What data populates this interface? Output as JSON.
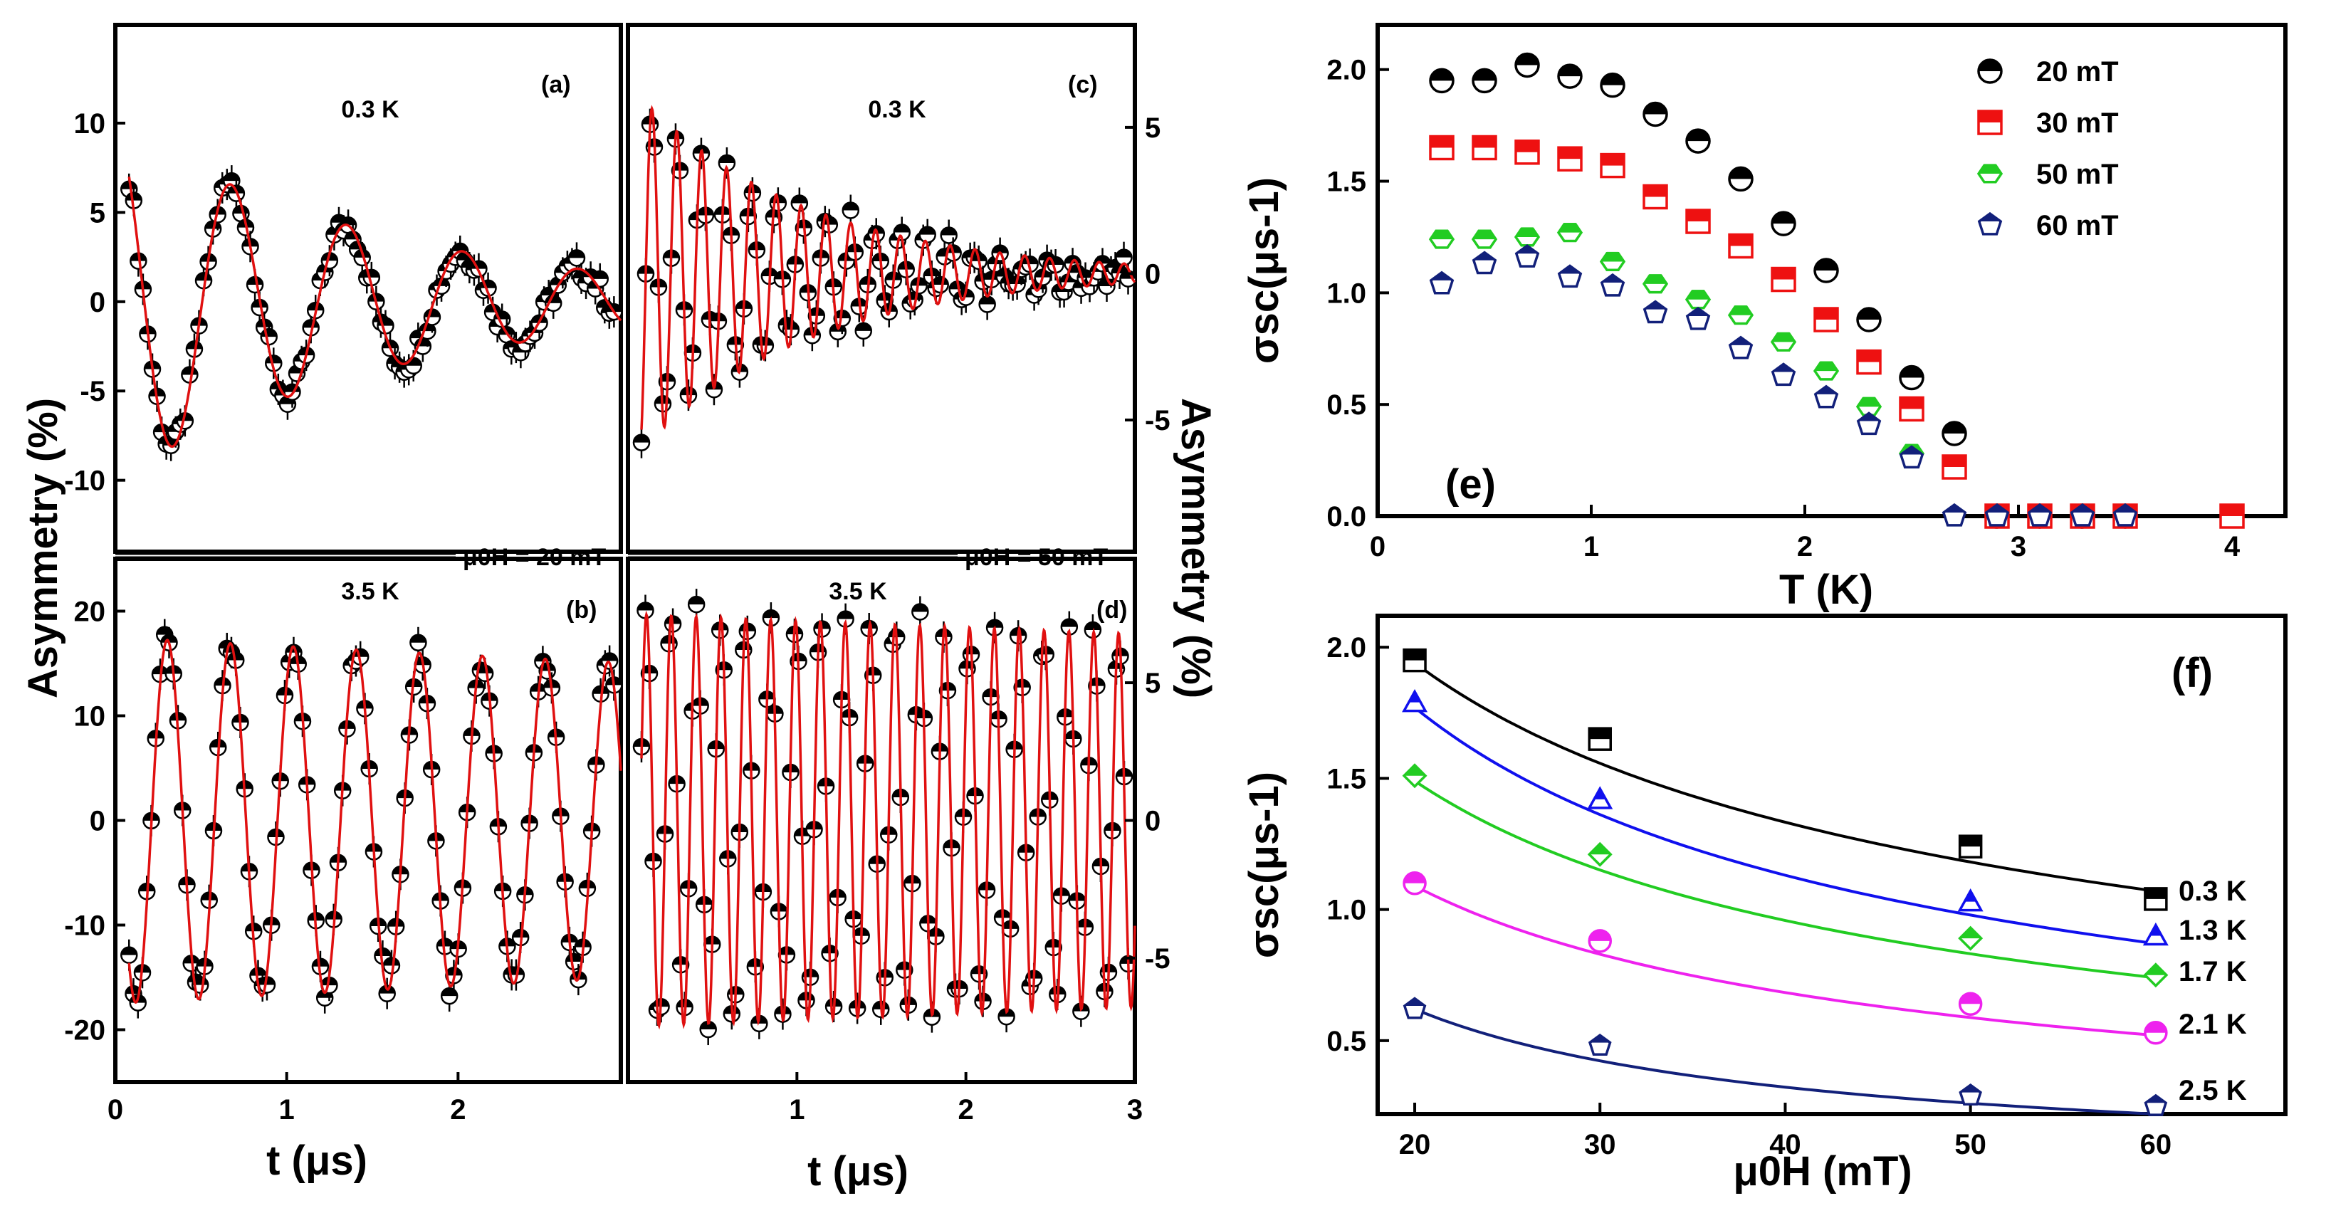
{
  "chart_data": [
    {
      "panel": "(a)",
      "type": "scatter",
      "label": "(a)",
      "temperature": "0.3 K",
      "xlim": [
        0,
        2.95
      ],
      "ylim": [
        -14,
        15.5
      ],
      "yticks": [
        -10,
        -5,
        0,
        5,
        10
      ],
      "fit": {
        "A": 10,
        "tau": 1.6,
        "f": 1.48,
        "phi": 0,
        "relax": 0.6
      }
    },
    {
      "panel": "(b)",
      "type": "scatter",
      "label": "(b)",
      "temperature": "3.5 K",
      "field_label": "μ0H = 20 mT",
      "xlim": [
        0,
        2.95
      ],
      "ylim": [
        -25,
        25
      ],
      "xticks": [
        0,
        1,
        2
      ],
      "yticks": [
        -20,
        -10,
        0,
        10,
        20
      ],
      "fit": {
        "A": 17.5,
        "tau": 20,
        "f": 2.72,
        "phi": 1.1,
        "relax": 0.02
      }
    },
    {
      "panel": "(c)",
      "type": "scatter",
      "label": "(c)",
      "temperature": "0.3 K",
      "xlim": [
        0,
        3
      ],
      "ylim": [
        -9.5,
        8.5
      ],
      "yticks": [
        -5,
        0,
        5
      ],
      "fit": {
        "A": 6.5,
        "tau": 1.0,
        "f": 6.8,
        "phi": 0.2,
        "relax": 0.5
      }
    },
    {
      "panel": "(d)",
      "type": "scatter",
      "label": "(d)",
      "temperature": "3.5 K",
      "field_label": "μ0H = 50 mT",
      "xlim": [
        0,
        3
      ],
      "ylim": [
        -9.5,
        9.5
      ],
      "xticks": [
        1,
        2,
        3
      ],
      "yticks": [
        -5,
        0,
        5
      ],
      "fit": {
        "A": 7.5,
        "tau": 30,
        "f": 6.8,
        "phi": 1.6,
        "relax": 0.02
      }
    },
    {
      "panel": "(e)",
      "type": "scatter",
      "label": "(e)",
      "xlabel": "T (K)",
      "ylabel": "σsc(μs-1)",
      "xlim": [
        0,
        4.25
      ],
      "ylim": [
        0,
        2.2
      ],
      "xticks": [
        0,
        1,
        2,
        3,
        4
      ],
      "yticks": [
        0.0,
        0.5,
        1.0,
        1.5,
        2.0
      ],
      "series": [
        {
          "name": "20 mT",
          "color": "#000000",
          "marker": "circle",
          "x": [
            0.3,
            0.5,
            0.7,
            0.9,
            1.1,
            1.3,
            1.5,
            1.7,
            1.9,
            2.1,
            2.3,
            2.5,
            2.7,
            2.9,
            3.1,
            3.3,
            3.5
          ],
          "y": [
            1.95,
            1.95,
            2.02,
            1.97,
            1.93,
            1.8,
            1.68,
            1.51,
            1.31,
            1.1,
            0.88,
            0.62,
            0.37,
            0,
            0,
            0,
            0
          ]
        },
        {
          "name": "30 mT",
          "color": "#ee1111",
          "marker": "square",
          "x": [
            0.3,
            0.5,
            0.7,
            0.9,
            1.1,
            1.3,
            1.5,
            1.7,
            1.9,
            2.1,
            2.3,
            2.5,
            2.7,
            2.9,
            3.1,
            3.3,
            3.5,
            4.0
          ],
          "y": [
            1.65,
            1.65,
            1.63,
            1.6,
            1.57,
            1.43,
            1.32,
            1.21,
            1.06,
            0.88,
            0.69,
            0.48,
            0.22,
            0,
            0,
            0,
            0,
            0
          ]
        },
        {
          "name": "50 mT",
          "color": "#22cc22",
          "marker": "hexagon",
          "x": [
            0.3,
            0.5,
            0.7,
            0.9,
            1.1,
            1.3,
            1.5,
            1.7,
            1.9,
            2.1,
            2.3,
            2.5
          ],
          "y": [
            1.24,
            1.24,
            1.25,
            1.27,
            1.14,
            1.04,
            0.97,
            0.9,
            0.78,
            0.65,
            0.49,
            0.28
          ]
        },
        {
          "name": "60 mT",
          "color": "#12207a",
          "marker": "pentagon",
          "x": [
            0.3,
            0.5,
            0.7,
            0.9,
            1.1,
            1.3,
            1.5,
            1.7,
            1.9,
            2.1,
            2.3,
            2.5,
            2.7,
            2.9,
            3.1,
            3.3,
            3.5
          ],
          "y": [
            1.04,
            1.13,
            1.16,
            1.07,
            1.03,
            0.91,
            0.88,
            0.75,
            0.63,
            0.53,
            0.41,
            0.26,
            0,
            0,
            0,
            0,
            0
          ]
        }
      ]
    },
    {
      "panel": "(f)",
      "type": "scatter",
      "label": "(f)",
      "xlabel": "μ0H (mT)",
      "ylabel": "σsc(μs-1)",
      "xlim": [
        18,
        67
      ],
      "ylim": [
        0.22,
        2.12
      ],
      "xticks": [
        20,
        30,
        40,
        50,
        60
      ],
      "yticks": [
        0.5,
        1.0,
        1.5,
        2.0
      ],
      "series": [
        {
          "name": "0.3 K",
          "color": "#000000",
          "marker": "square",
          "x": [
            20,
            30,
            50,
            60
          ],
          "y": [
            1.95,
            1.65,
            1.24,
            1.04
          ],
          "fit": [
            1.94,
            1.07
          ]
        },
        {
          "name": "1.3 K",
          "color": "#1010ee",
          "marker": "triangle",
          "x": [
            20,
            30,
            50,
            60
          ],
          "y": [
            1.79,
            1.42,
            1.03,
            0.9
          ],
          "fit": [
            1.77,
            0.87
          ]
        },
        {
          "name": "1.7 K",
          "color": "#22cc22",
          "marker": "diamond",
          "x": [
            20,
            30,
            50,
            60
          ],
          "y": [
            1.51,
            1.21,
            0.89,
            0.75
          ],
          "fit": [
            1.49,
            0.74
          ]
        },
        {
          "name": "2.1 K",
          "color": "#ee22ee",
          "marker": "circle",
          "x": [
            20,
            30,
            50,
            60
          ],
          "y": [
            1.1,
            0.88,
            0.64,
            0.53
          ],
          "fit": [
            1.09,
            0.52
          ]
        },
        {
          "name": "2.5 K",
          "color": "#12207a",
          "marker": "pentagon",
          "x": [
            20,
            30,
            50,
            60
          ],
          "y": [
            0.62,
            0.48,
            0.29,
            0.25
          ],
          "fit": [
            0.62,
            0.22
          ]
        }
      ]
    }
  ],
  "labels": {
    "asymmetry_left": "Asymmetry (%)",
    "asymmetry_right": "Asymmetry (%)",
    "t_left": "t (μs)",
    "t_right": "t (μs)",
    "t_k": "T (K)",
    "field_20": "μ0H = 20 mT",
    "field_50": "μ0H = 50 mT"
  }
}
